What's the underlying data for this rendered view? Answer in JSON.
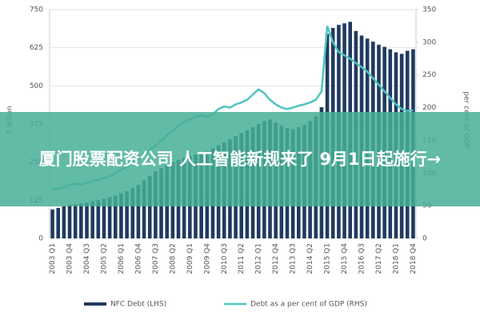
{
  "chart_data": {
    "type": "bar_line",
    "y_label": "$ billion",
    "y2_label": "per cent of GDP",
    "categories": [
      "2003 Q1",
      null,
      null,
      "2003 Q4",
      null,
      null,
      "2004 Q3",
      null,
      null,
      "2005 Q2",
      null,
      null,
      "2006 Q1",
      null,
      null,
      "2006 Q4",
      null,
      null,
      "2007 Q3",
      null,
      null,
      "2008 Q2",
      null,
      null,
      "2009 Q1",
      null,
      null,
      "2009 Q4",
      null,
      null,
      "2010 Q3",
      null,
      null,
      "2011 Q2",
      null,
      null,
      "2012 Q1",
      null,
      null,
      "2012 Q4",
      null,
      null,
      "2013 Q3",
      null,
      null,
      "2014 Q2",
      null,
      null,
      "2015 Q1",
      null,
      null,
      "2015 Q4",
      null,
      null,
      "2016 Q3",
      null,
      null,
      "2017 Q2",
      null,
      null,
      "2018 Q1",
      null,
      null,
      "2018 Q4"
    ],
    "series": [
      {
        "name": "NFC Debt (LHS)",
        "color": "#1f3a60",
        "kind": "bar",
        "values": [
          95,
          100,
          105,
          110,
          112,
          115,
          118,
          122,
          125,
          130,
          135,
          140,
          148,
          155,
          165,
          175,
          190,
          205,
          220,
          230,
          240,
          250,
          258,
          265,
          270,
          275,
          278,
          285,
          295,
          305,
          315,
          325,
          335,
          345,
          355,
          365,
          375,
          385,
          390,
          380,
          370,
          362,
          358,
          365,
          372,
          385,
          400,
          430,
          670,
          690,
          700,
          705,
          710,
          680,
          665,
          655,
          645,
          635,
          628,
          620,
          610,
          605,
          615,
          620
        ]
      },
      {
        "name": "Debt as a per cent of GDP (RHS)",
        "color": "#4fc4c0",
        "kind": "line",
        "axis": "y2",
        "values": [
          75,
          76,
          78,
          82,
          84,
          82,
          85,
          88,
          90,
          92,
          95,
          100,
          105,
          110,
          115,
          120,
          128,
          135,
          142,
          150,
          158,
          165,
          172,
          178,
          182,
          186,
          188,
          186,
          190,
          198,
          202,
          200,
          205,
          208,
          212,
          220,
          228,
          222,
          212,
          205,
          200,
          198,
          200,
          203,
          205,
          208,
          212,
          225,
          325,
          300,
          285,
          280,
          275,
          268,
          262,
          255,
          245,
          235,
          225,
          215,
          205,
          198,
          195,
          196
        ]
      }
    ],
    "ylim": [
      0,
      750
    ],
    "yticks": [
      0,
      125,
      250,
      375,
      500,
      625,
      750
    ],
    "y2lim": [
      0,
      350
    ],
    "y2ticks": [
      0,
      50,
      100,
      150,
      200,
      250,
      300,
      350
    ]
  },
  "banner": "厦门股票配资公司 人工智能新规来了 9月1日起施行→"
}
